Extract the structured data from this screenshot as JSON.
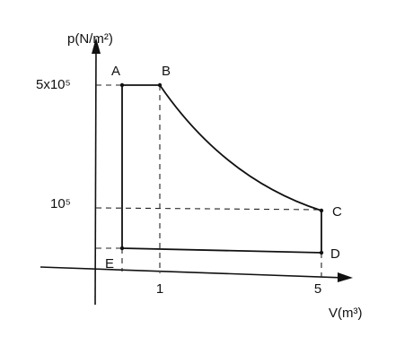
{
  "axes": {
    "y_label": "p(N/m²)",
    "x_label": "V(m³)"
  },
  "y_ticks": [
    "5x10⁵",
    "10⁵"
  ],
  "x_ticks": [
    "1",
    "5"
  ],
  "points": [
    "A",
    "B",
    "C",
    "D",
    "E"
  ]
}
